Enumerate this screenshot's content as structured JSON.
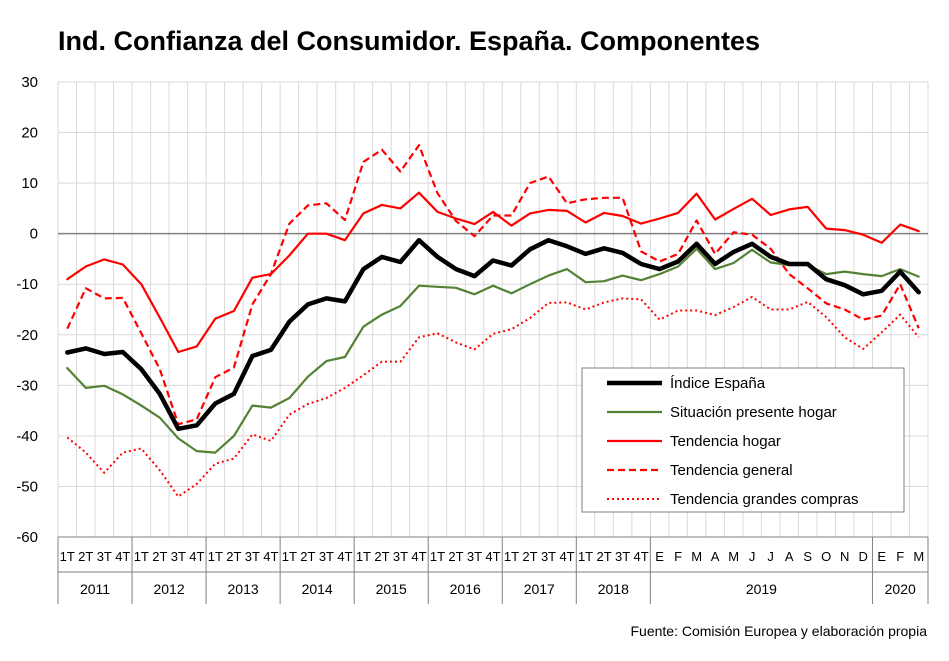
{
  "chart_data": {
    "type": "line",
    "title": "Ind. Confianza del Consumidor. España. Componentes",
    "source": "Fuente: Comisión Europea y elaboración propia",
    "ylim": [
      -60,
      30
    ],
    "yticks": [
      30,
      20,
      10,
      0,
      -10,
      -20,
      -30,
      -40,
      -50,
      -60
    ],
    "grid": true,
    "legend_position": "bottom-right",
    "categories": [
      "1T",
      "2T",
      "3T",
      "4T",
      "1T",
      "2T",
      "3T",
      "4T",
      "1T",
      "2T",
      "3T",
      "4T",
      "1T",
      "2T",
      "3T",
      "4T",
      "1T",
      "2T",
      "3T",
      "4T",
      "1T",
      "2T",
      "3T",
      "4T",
      "1T",
      "2T",
      "3T",
      "4T",
      "1T",
      "2T",
      "3T",
      "4T",
      "E",
      "F",
      "M",
      "A",
      "M",
      "J",
      "J",
      "A",
      "S",
      "O",
      "N",
      "D",
      "E",
      "F",
      "M"
    ],
    "groups": [
      {
        "label": "2011",
        "count": 4
      },
      {
        "label": "2012",
        "count": 4
      },
      {
        "label": "2013",
        "count": 4
      },
      {
        "label": "2014",
        "count": 4
      },
      {
        "label": "2015",
        "count": 4
      },
      {
        "label": "2016",
        "count": 4
      },
      {
        "label": "2017",
        "count": 4
      },
      {
        "label": "2018",
        "count": 4
      },
      {
        "label": "2019",
        "count": 12
      },
      {
        "label": "2020",
        "count": 3
      }
    ],
    "series": [
      {
        "name": "Índice España",
        "color": "#000000",
        "style": "solid-thick",
        "values": [
          -23.5,
          -22.7,
          -23.8,
          -23.4,
          -26.8,
          -31.7,
          -38.6,
          -37.9,
          -33.6,
          -31.7,
          -24.2,
          -23,
          -17.4,
          -14,
          -12.8,
          -13.4,
          -7,
          -4.6,
          -5.6,
          -1.3,
          -4.6,
          -7,
          -8.4,
          -5.3,
          -6.3,
          -3.1,
          -1.3,
          -2.5,
          -4,
          -2.9,
          -3.8,
          -6,
          -7,
          -5.5,
          -2,
          -6,
          -3.6,
          -2,
          -4.6,
          -6,
          -6,
          -9,
          -10.2,
          -12,
          -11.3,
          -7.5,
          -11.6
        ]
      },
      {
        "name": "Situación presente hogar",
        "color": "#548235",
        "style": "solid",
        "values": [
          -26.6,
          -30.5,
          -30.1,
          -31.8,
          -34,
          -36.4,
          -40.5,
          -43,
          -43.3,
          -40,
          -34,
          -34.4,
          -32.5,
          -28.3,
          -25.2,
          -24.4,
          -18.4,
          -16,
          -14.3,
          -10.3,
          -10.5,
          -10.7,
          -12,
          -10.3,
          -11.8,
          -10,
          -8.3,
          -7,
          -9.6,
          -9.4,
          -8.3,
          -9.2,
          -8,
          -6.5,
          -3,
          -7,
          -5.8,
          -3.2,
          -5.7,
          -6.2,
          -6.2,
          -8,
          -7.5,
          -8,
          -8.4,
          -7,
          -8.5
        ]
      },
      {
        "name": "Tendencia hogar",
        "color": "#ff0000",
        "style": "solid",
        "values": [
          -9,
          -6.5,
          -5.1,
          -6.1,
          -10,
          -16.6,
          -23.4,
          -22.3,
          -16.8,
          -15.3,
          -8.7,
          -8,
          -4.3,
          0,
          0,
          -1.3,
          4,
          5.7,
          5,
          8.1,
          4.3,
          3,
          1.9,
          4.3,
          1.6,
          4,
          4.7,
          4.5,
          2.2,
          4.1,
          3.5,
          2,
          3,
          4.1,
          7.9,
          2.8,
          4.9,
          6.9,
          3.7,
          4.8,
          5.3,
          1,
          0.7,
          -0.2,
          -1.8,
          1.8,
          0.5
        ]
      },
      {
        "name": "Tendencia general",
        "color": "#ff0000",
        "style": "dashed",
        "values": [
          -18.8,
          -10.8,
          -12.8,
          -12.7,
          -19.7,
          -26.8,
          -37.7,
          -36.7,
          -28.4,
          -26.5,
          -14,
          -8,
          2,
          5.6,
          6,
          2.7,
          14.2,
          16.6,
          12.3,
          17.5,
          8,
          2.5,
          -0.5,
          3.6,
          3.6,
          10,
          11.3,
          6,
          6.8,
          7.1,
          7.1,
          -3.5,
          -5.5,
          -4,
          2.6,
          -4,
          0.3,
          -0.2,
          -3,
          -8,
          -10.8,
          -13.8,
          -15,
          -17,
          -16.2,
          -10,
          -18.7
        ]
      },
      {
        "name": "Tendencia grandes compras",
        "color": "#ff0000",
        "style": "dotted",
        "values": [
          -40.3,
          -43.3,
          -47.3,
          -43.3,
          -42.5,
          -46.8,
          -52,
          -49.5,
          -45.5,
          -44.5,
          -39.7,
          -41,
          -35.8,
          -33.7,
          -32.5,
          -30.5,
          -28,
          -25.3,
          -25.3,
          -20.5,
          -19.7,
          -21.5,
          -22.9,
          -19.8,
          -18.9,
          -16.7,
          -13.7,
          -13.6,
          -15,
          -13.6,
          -12.8,
          -13,
          -17,
          -15.2,
          -15.2,
          -16.1,
          -14.5,
          -12.5,
          -15,
          -15,
          -13.5,
          -16.5,
          -20.5,
          -22.8,
          -19.5,
          -16,
          -20.5
        ]
      }
    ]
  }
}
